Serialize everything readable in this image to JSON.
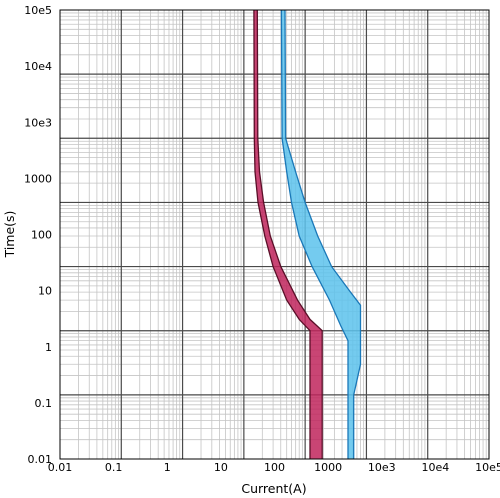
{
  "chart_data": {
    "type": "area",
    "xlabel": "Current(A)",
    "ylabel": "Time(s)",
    "x_scale": "log",
    "y_scale": "log",
    "xlim": [
      0.01,
      100000
    ],
    "ylim": [
      0.01,
      100000
    ],
    "x_ticks": [
      {
        "value": 0.01,
        "label": "0.01"
      },
      {
        "value": 0.1,
        "label": "0.1"
      },
      {
        "value": 1,
        "label": "1"
      },
      {
        "value": 10,
        "label": "10"
      },
      {
        "value": 100,
        "label": "100"
      },
      {
        "value": 1000,
        "label": "1000"
      },
      {
        "value": 10000,
        "label": "10e3"
      },
      {
        "value": 100000,
        "label": "10e4"
      },
      {
        "value": 1000000,
        "label": "10e5"
      }
    ],
    "y_ticks": [
      {
        "value": 0.01,
        "label": "0.01"
      },
      {
        "value": 0.1,
        "label": "0.1"
      },
      {
        "value": 1,
        "label": "1"
      },
      {
        "value": 10,
        "label": "10"
      },
      {
        "value": 100,
        "label": "100"
      },
      {
        "value": 1000,
        "label": "1000"
      },
      {
        "value": 10000,
        "label": "10e3"
      },
      {
        "value": 100000,
        "label": "10e4"
      },
      {
        "value": 1000000,
        "label": "10e5"
      }
    ],
    "grid": true,
    "series": [
      {
        "color": "#c0245c",
        "edge_color": "#5a0f28",
        "min_curve": [
          [
            14.6,
            1000000
          ],
          [
            14.8,
            1000
          ],
          [
            15.2,
            300
          ],
          [
            17,
            100
          ],
          [
            22,
            30
          ],
          [
            30,
            10
          ],
          [
            50,
            3
          ],
          [
            80,
            1.5
          ],
          [
            120,
            1
          ],
          [
            120,
            0.01
          ]
        ],
        "max_curve": [
          [
            16.6,
            1000000
          ],
          [
            16.9,
            1000
          ],
          [
            18,
            300
          ],
          [
            21,
            100
          ],
          [
            27,
            30
          ],
          [
            40,
            10
          ],
          [
            75,
            3
          ],
          [
            120,
            1.5
          ],
          [
            190,
            1
          ],
          [
            190,
            0.01
          ]
        ]
      },
      {
        "color": "#5cc2ec",
        "edge_color": "#1a78b8",
        "min_curve": [
          [
            41,
            1000000
          ],
          [
            42,
            1000
          ],
          [
            50,
            300
          ],
          [
            60,
            100
          ],
          [
            80,
            30
          ],
          [
            130,
            10
          ],
          [
            250,
            3
          ],
          [
            380,
            1.2
          ],
          [
            500,
            0.7
          ],
          [
            500,
            0.01
          ]
        ],
        "max_curve": [
          [
            47,
            1000000
          ],
          [
            48,
            1000
          ],
          [
            70,
            300
          ],
          [
            100,
            100
          ],
          [
            160,
            30
          ],
          [
            270,
            10
          ],
          [
            550,
            4
          ],
          [
            800,
            2.5
          ],
          [
            800,
            0.3
          ],
          [
            620,
            0.1
          ],
          [
            620,
            0.01
          ]
        ]
      }
    ]
  }
}
